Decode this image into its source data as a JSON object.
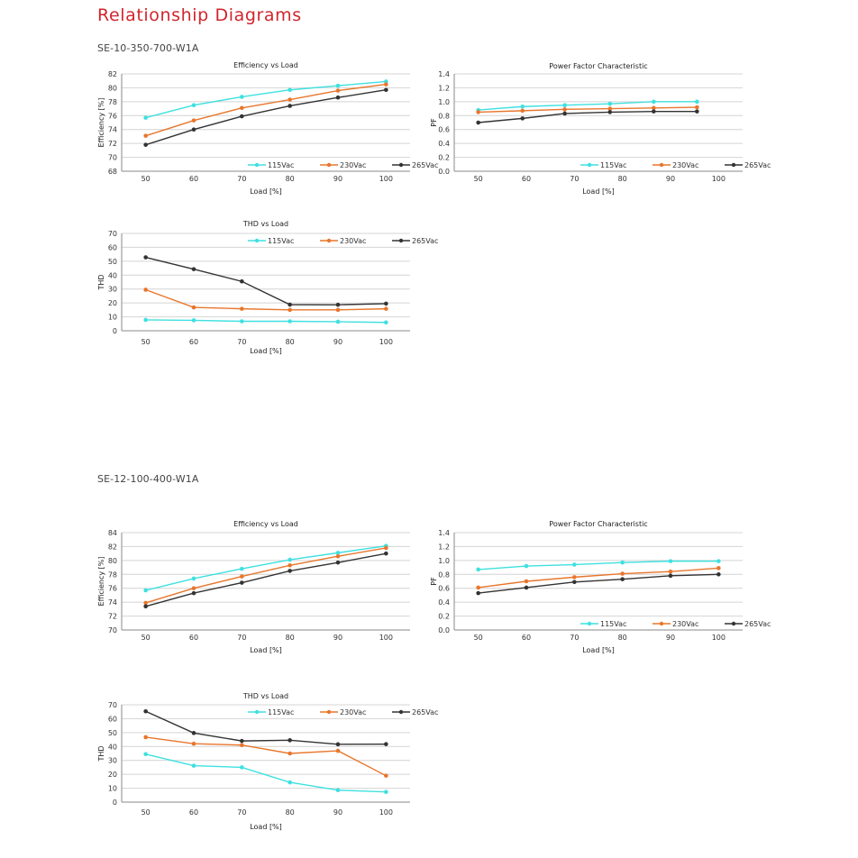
{
  "page": {
    "title": "Relationship Diagrams",
    "sections": [
      {
        "model": "SE-10-350-700-W1A"
      },
      {
        "model": "SE-12-100-400-W1A"
      }
    ]
  },
  "colors": {
    "title": "#d0262d",
    "115Vac": "#3fe0e0",
    "230Vac": "#e8762c",
    "265Vac": "#333333"
  },
  "chart_data": [
    {
      "id": "eff1",
      "section": "SE-10-350-700-W1A",
      "type": "line",
      "title": "Efficiency vs Load",
      "xlabel": "Load [%]",
      "ylabel": "Efficiency [%]",
      "categories": [
        "50",
        "60",
        "70",
        "80",
        "90",
        "100"
      ],
      "ylim": [
        68,
        82
      ],
      "yticks": [
        68,
        70,
        72,
        74,
        76,
        78,
        80,
        82
      ],
      "grid": true,
      "legend": "bottom-right",
      "series": [
        {
          "name": "115Vac",
          "values": [
            75.7,
            77.5,
            78.7,
            79.7,
            80.3,
            80.9
          ]
        },
        {
          "name": "230Vac",
          "values": [
            73.1,
            75.3,
            77.1,
            78.3,
            79.6,
            80.5
          ]
        },
        {
          "name": "265Vac",
          "values": [
            71.8,
            74.0,
            75.9,
            77.4,
            78.6,
            79.7
          ]
        }
      ]
    },
    {
      "id": "pf1",
      "section": "SE-10-350-700-W1A",
      "type": "line",
      "title": "Power Factor Characteristic",
      "xlabel": "Load [%]",
      "ylabel": "PF",
      "categories": [
        "50",
        "60",
        "70",
        "80",
        "90",
        "100"
      ],
      "point_positions": [
        50,
        59.2,
        68,
        77.4,
        86.5,
        95.5
      ],
      "ylim": [
        0.0,
        1.4
      ],
      "yticks": [
        "0.0",
        "0.2",
        "0.4",
        "0.6",
        "0.8",
        "1.0",
        "1.2",
        "1.4"
      ],
      "grid": true,
      "legend": "bottom-right",
      "series": [
        {
          "name": "115Vac",
          "values": [
            0.88,
            0.93,
            0.95,
            0.97,
            1.0,
            1.0
          ]
        },
        {
          "name": "230Vac",
          "values": [
            0.85,
            0.87,
            0.89,
            0.9,
            0.91,
            0.92
          ]
        },
        {
          "name": "265Vac",
          "values": [
            0.7,
            0.76,
            0.83,
            0.85,
            0.86,
            0.86
          ]
        }
      ]
    },
    {
      "id": "thd1",
      "section": "SE-10-350-700-W1A",
      "type": "line",
      "title": "THD vs Load",
      "xlabel": "Load [%]",
      "ylabel": "THD",
      "categories": [
        "50",
        "60",
        "70",
        "80",
        "90",
        "100"
      ],
      "ylim": [
        0,
        70
      ],
      "yticks": [
        0,
        10,
        20,
        30,
        40,
        50,
        60,
        70
      ],
      "grid": true,
      "legend": "top-right",
      "series": [
        {
          "name": "115Vac",
          "values": [
            7.8,
            7.5,
            6.8,
            6.8,
            6.5,
            6.0
          ]
        },
        {
          "name": "230Vac",
          "values": [
            29.5,
            16.8,
            15.8,
            15.0,
            15.0,
            15.8
          ]
        },
        {
          "name": "265Vac",
          "values": [
            52.8,
            44.3,
            35.5,
            18.8,
            18.7,
            19.5
          ]
        }
      ]
    },
    {
      "id": "eff2",
      "section": "SE-12-100-400-W1A",
      "type": "line",
      "title": "Efficiency vs Load",
      "xlabel": "Load [%]",
      "ylabel": "Efficiency [%]",
      "categories": [
        "50",
        "60",
        "70",
        "80",
        "90",
        "100"
      ],
      "ylim": [
        70,
        84
      ],
      "yticks": [
        70,
        72,
        74,
        76,
        78,
        80,
        82,
        84
      ],
      "grid": true,
      "legend": "none",
      "series": [
        {
          "name": "115Vac",
          "values": [
            75.7,
            77.4,
            78.8,
            80.1,
            81.1,
            82.1
          ]
        },
        {
          "name": "230Vac",
          "values": [
            73.9,
            76.0,
            77.7,
            79.3,
            80.6,
            81.8
          ]
        },
        {
          "name": "265Vac",
          "values": [
            73.4,
            75.3,
            76.8,
            78.5,
            79.7,
            81.0
          ]
        }
      ]
    },
    {
      "id": "pf2",
      "section": "SE-12-100-400-W1A",
      "type": "line",
      "title": "Power Factor Characteristic",
      "xlabel": "Load [%]",
      "ylabel": "PF",
      "categories": [
        "50",
        "60",
        "70",
        "80",
        "90",
        "100"
      ],
      "ylim": [
        0.0,
        1.4
      ],
      "yticks": [
        "0.0",
        "0.2",
        "0.4",
        "0.6",
        "0.8",
        "1.0",
        "1.2",
        "1.4"
      ],
      "grid": true,
      "legend": "bottom-right",
      "series": [
        {
          "name": "115Vac",
          "values": [
            0.87,
            0.92,
            0.94,
            0.97,
            0.99,
            0.99
          ]
        },
        {
          "name": "230Vac",
          "values": [
            0.61,
            0.7,
            0.76,
            0.81,
            0.84,
            0.89
          ]
        },
        {
          "name": "265Vac",
          "values": [
            0.53,
            0.61,
            0.69,
            0.73,
            0.78,
            0.8
          ]
        }
      ]
    },
    {
      "id": "thd2",
      "section": "SE-12-100-400-W1A",
      "type": "line",
      "title": "THD vs Load",
      "xlabel": "Load [%]",
      "ylabel": "THD",
      "categories": [
        "50",
        "60",
        "70",
        "80",
        "90",
        "100"
      ],
      "ylim": [
        0,
        70
      ],
      "yticks": [
        0,
        10,
        20,
        30,
        40,
        50,
        60,
        70
      ],
      "grid": true,
      "legend": "top-right",
      "series": [
        {
          "name": "115Vac",
          "values": [
            34.5,
            26.2,
            25.0,
            14.2,
            8.6,
            7.3
          ]
        },
        {
          "name": "230Vac",
          "values": [
            46.7,
            42.0,
            41.0,
            35.0,
            36.9,
            19.0
          ]
        },
        {
          "name": "265Vac",
          "values": [
            65.3,
            49.7,
            44.0,
            44.5,
            41.6,
            41.7
          ]
        }
      ]
    }
  ]
}
